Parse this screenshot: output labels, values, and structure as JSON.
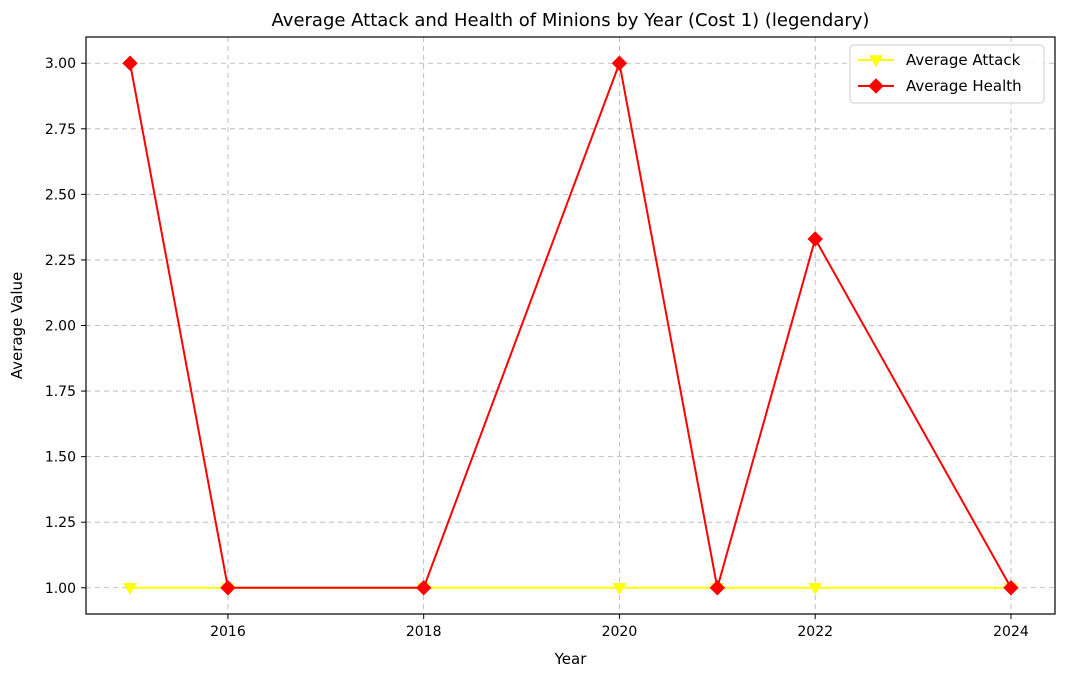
{
  "chart_data": {
    "type": "line",
    "title": "Average Attack and Health of Minions by Year (Cost 1) (legendary)",
    "xlabel": "Year",
    "ylabel": "Average Value",
    "xlim": [
      2014.55,
      2024.45
    ],
    "ylim": [
      0.9,
      3.1
    ],
    "xticks": [
      2016,
      2018,
      2020,
      2022,
      2024
    ],
    "xtick_labels": [
      "2016",
      "2018",
      "2020",
      "2022",
      "2024"
    ],
    "yticks": [
      1.0,
      1.25,
      1.5,
      1.75,
      2.0,
      2.25,
      2.5,
      2.75,
      3.0
    ],
    "ytick_labels": [
      "1.00",
      "1.25",
      "1.50",
      "1.75",
      "2.00",
      "2.25",
      "2.50",
      "2.75",
      "3.00"
    ],
    "grid": true,
    "legend_position": "top-right",
    "x": [
      2015,
      2016,
      2018,
      2020,
      2021,
      2022,
      2024
    ],
    "series": [
      {
        "name": "Average Attack",
        "values": [
          1,
          1,
          1,
          1,
          1,
          1,
          1
        ],
        "color": "#ffff00",
        "marker": "triangle-down"
      },
      {
        "name": "Average Health",
        "values": [
          3,
          1,
          1,
          3,
          1,
          2.33,
          1
        ],
        "color": "#ff0000",
        "marker": "diamond"
      }
    ]
  }
}
